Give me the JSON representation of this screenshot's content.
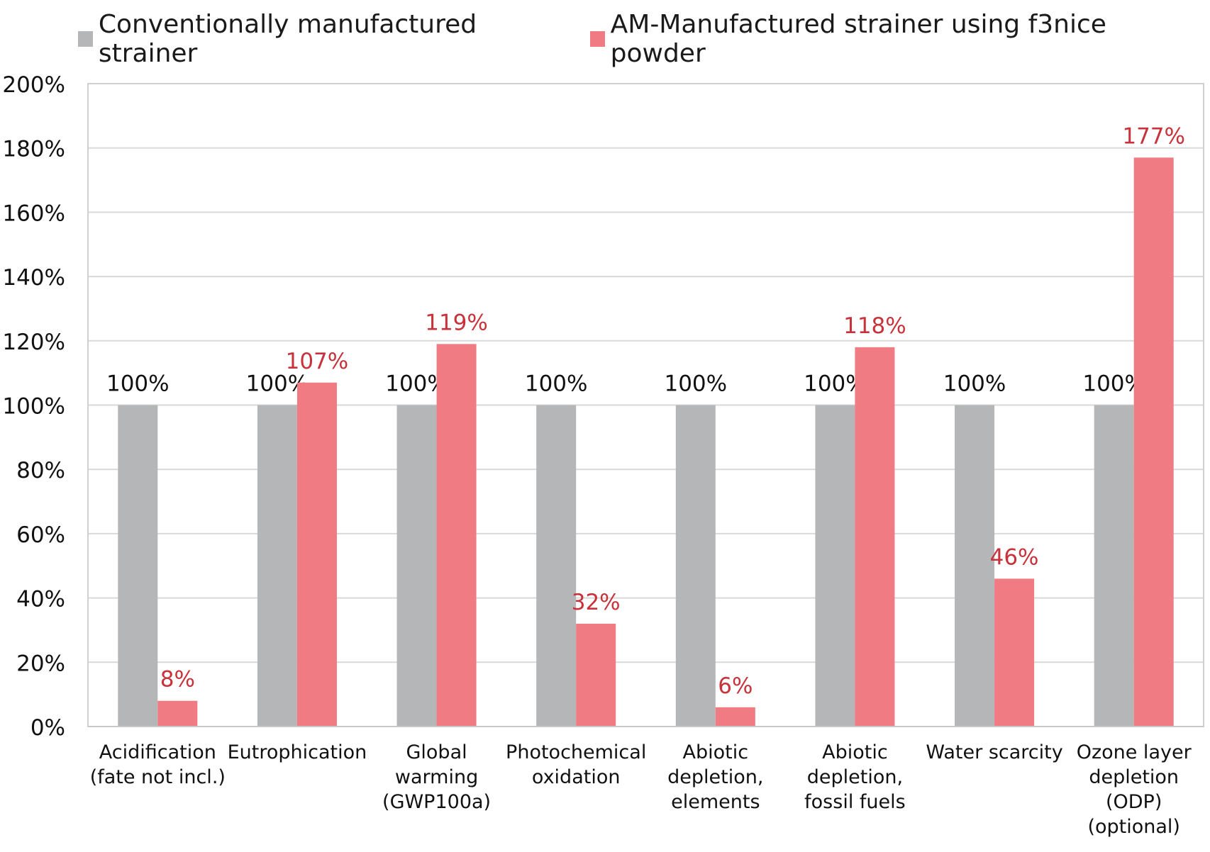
{
  "chart_data": {
    "type": "bar",
    "categories": [
      [
        "Acidification",
        "(fate not incl.)"
      ],
      [
        "Eutrophication"
      ],
      [
        "Global",
        "warming",
        "(GWP100a)"
      ],
      [
        "Photochemical",
        "oxidation"
      ],
      [
        "Abiotic",
        "depletion,",
        "elements"
      ],
      [
        "Abiotic",
        "depletion,",
        "fossil fuels"
      ],
      [
        "Water scarcity"
      ],
      [
        "Ozone layer",
        "depletion",
        "(ODP)",
        "(optional)"
      ]
    ],
    "series": [
      {
        "name": "Conventionally manufactured strainer",
        "color": "#b4b6b8",
        "label_color": "#111111",
        "values": [
          100,
          100,
          100,
          100,
          100,
          100,
          100,
          100
        ],
        "labels": [
          "100%",
          "100%",
          "100%",
          "100%",
          "100%",
          "100%",
          "100%",
          "100%"
        ]
      },
      {
        "name": "AM-Manufactured strainer using f3nice powder",
        "color": "#f07b82",
        "label_color": "#c8323a",
        "values": [
          8,
          107,
          119,
          32,
          6,
          118,
          46,
          177
        ],
        "labels": [
          "8%",
          "107%",
          "119%",
          "32%",
          "6%",
          "118%",
          "46%",
          "177%"
        ]
      }
    ],
    "ylim": [
      0,
      200
    ],
    "yticks": [
      0,
      20,
      40,
      60,
      80,
      100,
      120,
      140,
      160,
      180,
      200
    ],
    "ytick_labels": [
      "0%",
      "20%",
      "40%",
      "60%",
      "80%",
      "100%",
      "120%",
      "140%",
      "160%",
      "180%",
      "200%"
    ],
    "grid": true,
    "legend": "top-left",
    "title": "",
    "xlabel": "",
    "ylabel": ""
  }
}
